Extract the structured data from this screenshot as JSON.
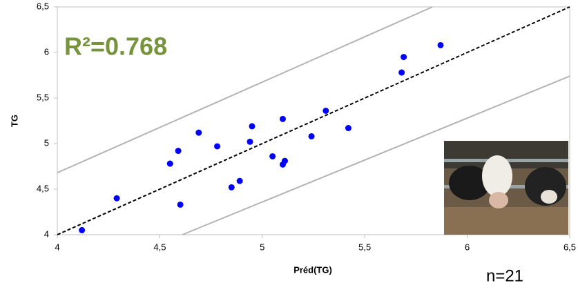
{
  "chart_data": {
    "type": "scatter",
    "xlabel": "Préd(TG)",
    "ylabel": "TG",
    "annotations": [
      "R²=0.768",
      "n=21"
    ],
    "series": [
      {
        "color": "#0000ff",
        "x": [
          4.12,
          4.29,
          4.55,
          4.59,
          4.6,
          4.69,
          4.78,
          4.85,
          4.89,
          4.95,
          4.94,
          5.05,
          5.1,
          5.11,
          5.1,
          5.24,
          5.31,
          5.42,
          5.68,
          5.69,
          5.87
        ],
        "values": [
          4.05,
          4.4,
          4.78,
          4.92,
          4.33,
          5.12,
          4.97,
          4.52,
          4.59,
          5.19,
          5.02,
          4.86,
          4.77,
          4.81,
          5.27,
          5.08,
          5.36,
          5.17,
          5.78,
          5.95,
          6.08
        ]
      }
    ],
    "lines": [
      {
        "x": [
          4,
          6.5
        ],
        "values": [
          4,
          6.5
        ],
        "color": "#000000",
        "dashed": true
      },
      {
        "x": [
          4,
          5.83
        ],
        "values": [
          4.68,
          6.5
        ],
        "color": "#b3b3b3",
        "dashed": false
      },
      {
        "x": [
          4.61,
          6.5
        ],
        "values": [
          4,
          5.74
        ],
        "color": "#b3b3b3",
        "dashed": false
      }
    ],
    "xlim": [
      4,
      6.5
    ],
    "ylim": [
      4,
      6.5
    ],
    "xticks": [
      4,
      {
        "value": 4.5,
        "label": "4,5"
      },
      5,
      {
        "value": 5.5,
        "label": "5,5"
      },
      6,
      {
        "value": 6.5,
        "label": "6,5"
      }
    ],
    "yticks": [
      4,
      {
        "value": 4.5,
        "label": "4,5"
      },
      5,
      {
        "value": 5.5,
        "label": "5,5"
      },
      6,
      {
        "value": 6.5,
        "label": "6,5"
      }
    ],
    "grid": false
  }
}
